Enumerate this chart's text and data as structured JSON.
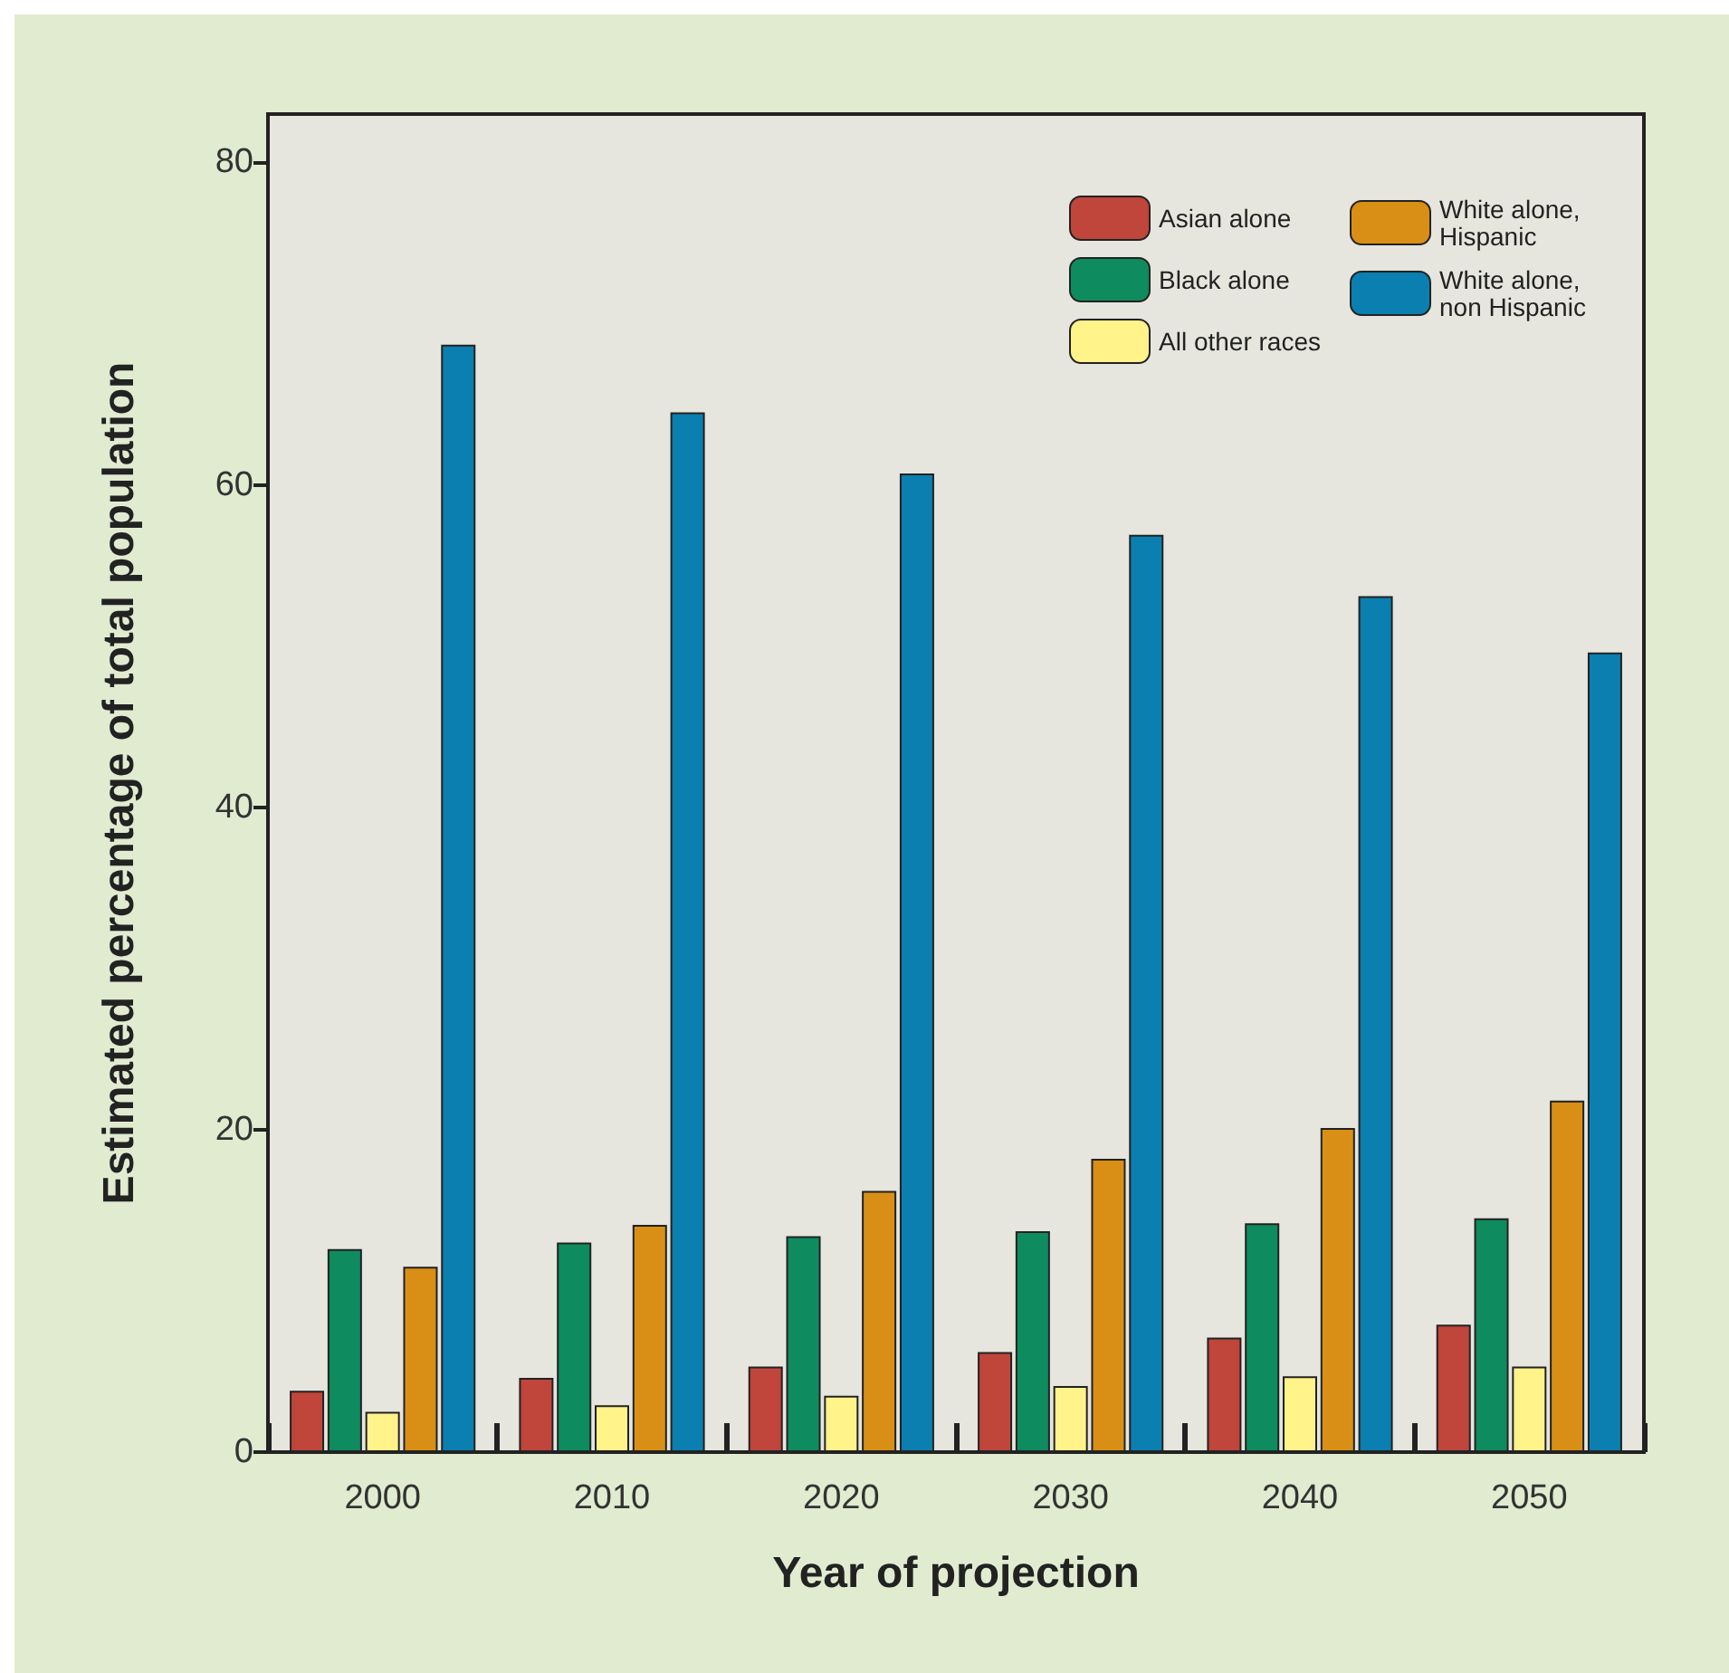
{
  "chart_data": {
    "type": "bar",
    "xlabel": "Year of projection",
    "ylabel": "Estimated percentage of total population",
    "categories": [
      "2000",
      "2010",
      "2020",
      "2030",
      "2040",
      "2050"
    ],
    "series": [
      {
        "name": "Asian alone",
        "color": "#c0453b",
        "values": [
          3.8,
          4.6,
          5.3,
          6.2,
          7.1,
          7.9
        ]
      },
      {
        "name": "Black alone",
        "color": "#0f8c5f",
        "values": [
          12.6,
          13.0,
          13.4,
          13.7,
          14.2,
          14.5
        ]
      },
      {
        "name": "All other races",
        "color": "#fff38a",
        "values": [
          2.5,
          2.9,
          3.5,
          4.1,
          4.7,
          5.3
        ]
      },
      {
        "name": "White alone, Hispanic",
        "color": "#d98f15",
        "values": [
          11.5,
          14.1,
          16.2,
          18.2,
          20.1,
          21.8
        ]
      },
      {
        "name": "White alone, non Hispanic",
        "color": "#0a7fb0",
        "values": [
          68.7,
          64.5,
          60.7,
          56.9,
          53.1,
          49.6
        ]
      }
    ],
    "ylim": [
      0,
      83
    ],
    "yticks": [
      0,
      20,
      40,
      60,
      80
    ],
    "grid": false,
    "legend": "top right"
  }
}
